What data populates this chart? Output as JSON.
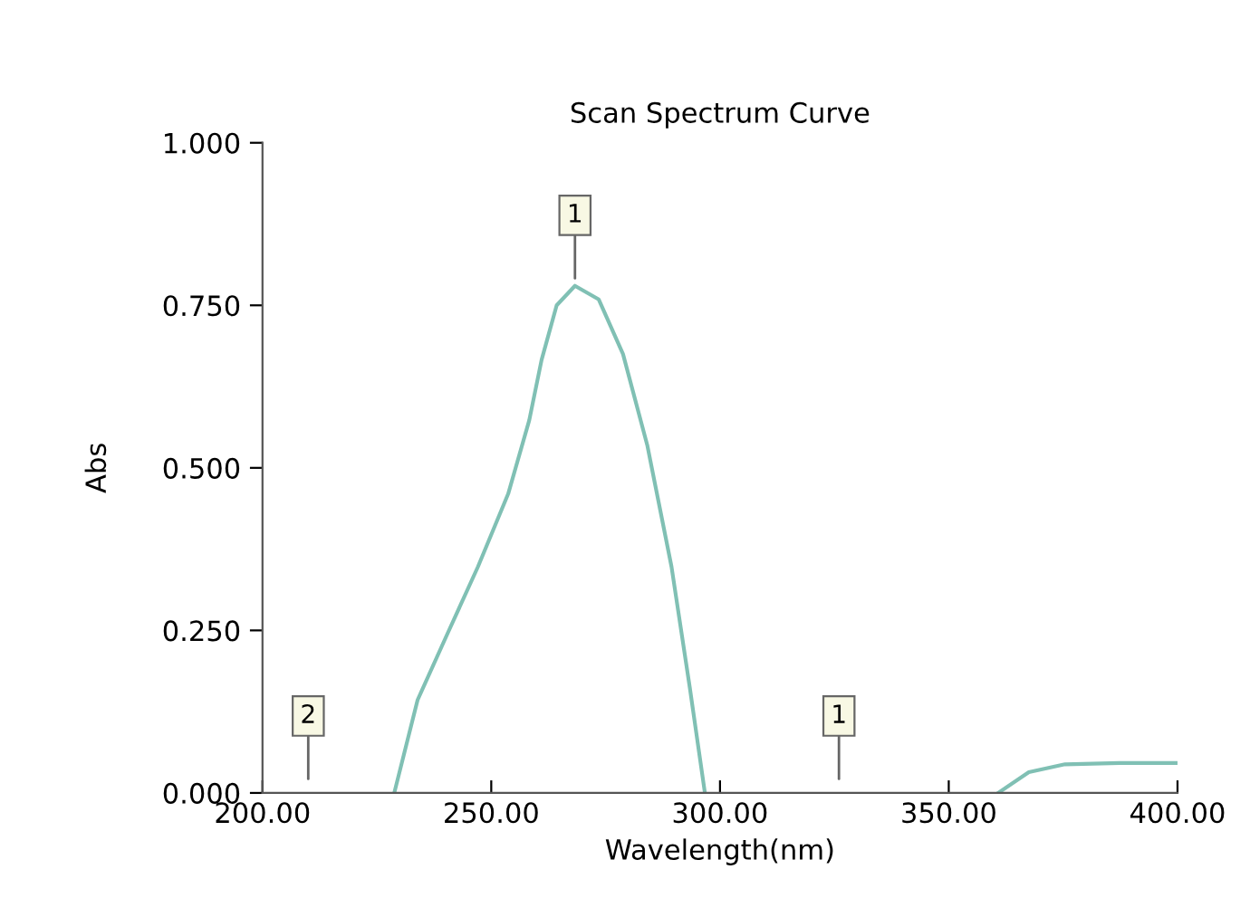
{
  "chart_data": {
    "type": "line",
    "title": "Scan Spectrum Curve",
    "xlabel": "Wavelength(nm)",
    "ylabel": "Abs",
    "xlim": [
      200,
      400
    ],
    "ylim": [
      0,
      1
    ],
    "xticks": [
      {
        "value": 200,
        "label": "200.00"
      },
      {
        "value": 250,
        "label": "250.00"
      },
      {
        "value": 300,
        "label": "300.00"
      },
      {
        "value": 350,
        "label": "350.00"
      },
      {
        "value": 400,
        "label": "400.00"
      }
    ],
    "yticks": [
      {
        "value": 0,
        "label": "0.000"
      },
      {
        "value": 0.25,
        "label": "0.250"
      },
      {
        "value": 0.5,
        "label": "0.500"
      },
      {
        "value": 0.75,
        "label": "0.750"
      },
      {
        "value": 1,
        "label": "1.000"
      }
    ],
    "grid": false,
    "marker": "none",
    "line_style": "solid",
    "series": [
      {
        "color": "#80c0b4",
        "x": [
          228.8,
          233.9,
          240.5,
          247.1,
          253.7,
          258.3,
          261.0,
          264.3,
          268.3,
          273.5,
          278.8,
          284.1,
          289.4,
          293.4,
          296.7,
          330,
          360.8,
          367.5,
          375.4,
          387.3,
          400
        ],
        "values": [
          0,
          0.143,
          0.246,
          0.348,
          0.46,
          0.573,
          0.666,
          0.75,
          0.78,
          0.759,
          0.675,
          0.535,
          0.348,
          0.162,
          0,
          null,
          0,
          0.032,
          0.044,
          0.046,
          0.046
        ]
      }
    ],
    "annotations": [
      {
        "text": "1",
        "x": 268.3,
        "y": 0.78
      },
      "2",
      "1"
    ]
  }
}
